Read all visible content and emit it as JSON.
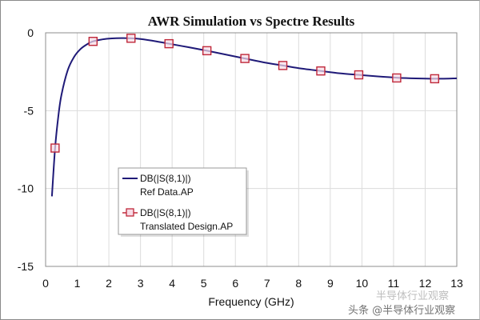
{
  "chart_data": {
    "type": "line",
    "title": "AWR Simulation vs Spectre Results",
    "xlabel": "Frequency (GHz)",
    "ylabel": "",
    "xlim": [
      0,
      13
    ],
    "ylim": [
      -15,
      0
    ],
    "x_ticks": [
      "0",
      "1",
      "2",
      "3",
      "4",
      "5",
      "6",
      "7",
      "8",
      "9",
      "10",
      "11",
      "12",
      "13"
    ],
    "y_ticks": [
      "0",
      "-5",
      "-10",
      "-15"
    ],
    "grid": true,
    "legend_position": "lower-left-center",
    "series": [
      {
        "name": "DB(|S(8,1)|) Ref Data.AP",
        "legend_line1": "DB(|S(8,1)|)",
        "legend_line2": "Ref Data.AP",
        "color": "#1f1a78",
        "marker": "none",
        "x": [
          0.2,
          0.3,
          0.4,
          0.5,
          0.7,
          0.9,
          1.1,
          1.3,
          1.5,
          1.8,
          2.1,
          2.4,
          2.7,
          3.0,
          3.5,
          3.9,
          4.5,
          5.1,
          5.7,
          6.3,
          6.9,
          7.5,
          8.1,
          8.7,
          9.3,
          9.9,
          10.5,
          11.1,
          11.7,
          12.3,
          12.9,
          13.0
        ],
        "y": [
          -10.5,
          -7.4,
          -5.4,
          -4.0,
          -2.4,
          -1.55,
          -1.05,
          -0.75,
          -0.55,
          -0.42,
          -0.36,
          -0.34,
          -0.35,
          -0.4,
          -0.55,
          -0.7,
          -0.92,
          -1.15,
          -1.4,
          -1.65,
          -1.9,
          -2.1,
          -2.3,
          -2.45,
          -2.6,
          -2.7,
          -2.8,
          -2.88,
          -2.93,
          -2.95,
          -2.93,
          -2.92
        ]
      },
      {
        "name": "DB(|S(8,1)|) Translated Design.AP",
        "legend_line1": "DB(|S(8,1)|)",
        "legend_line2": "Translated Design.AP",
        "color": "#c0283a",
        "marker": "square",
        "x": [
          0.3,
          1.5,
          2.7,
          3.9,
          5.1,
          6.3,
          7.5,
          8.7,
          9.9,
          11.1,
          12.3
        ],
        "y": [
          -7.4,
          -0.55,
          -0.35,
          -0.7,
          -1.15,
          -1.65,
          -2.1,
          -2.45,
          -2.7,
          -2.9,
          -2.95
        ]
      }
    ]
  },
  "watermark": {
    "line1": "半导体行业观察",
    "line2": "头条 @半导体行业观察"
  }
}
